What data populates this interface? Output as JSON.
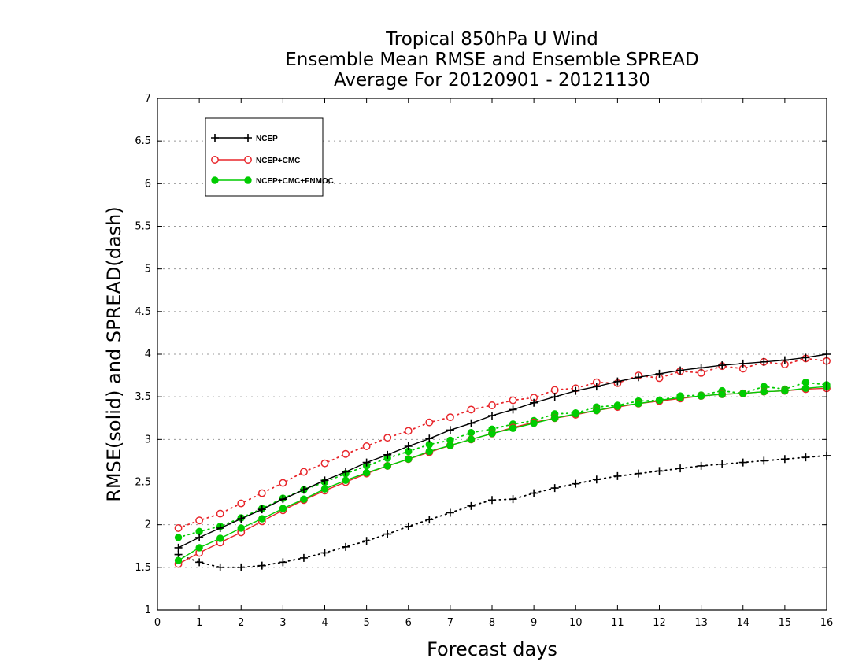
{
  "chart_data": {
    "type": "line",
    "title_lines": [
      "Tropical 850hPa U Wind",
      "Ensemble Mean RMSE and Ensemble SPREAD",
      "Average For 20120901 - 20121130"
    ],
    "xlabel": "Forecast days",
    "ylabel": "RMSE(solid) and SPREAD(dash)",
    "xlim": [
      0,
      16
    ],
    "ylim": [
      1,
      7
    ],
    "x_ticks": [
      0,
      1,
      2,
      3,
      4,
      5,
      6,
      7,
      8,
      9,
      10,
      11,
      12,
      13,
      14,
      15,
      16
    ],
    "y_ticks": [
      1,
      1.5,
      2,
      2.5,
      3,
      3.5,
      4,
      4.5,
      5,
      5.5,
      6,
      6.5,
      7
    ],
    "y_tick_labels": [
      "1",
      "1.5",
      "2",
      "2.5",
      "3",
      "3.5",
      "4",
      "4.5",
      "5",
      "5.5",
      "6",
      "6.5",
      "7"
    ],
    "grid": "horizontal dotted",
    "legend_position": "top-left",
    "x": [
      0.5,
      1,
      1.5,
      2,
      2.5,
      3,
      3.5,
      4,
      4.5,
      5,
      5.5,
      6,
      6.5,
      7,
      7.5,
      8,
      8.5,
      9,
      9.5,
      10,
      10.5,
      11,
      11.5,
      12,
      12.5,
      13,
      13.5,
      14,
      14.5,
      15,
      15.5,
      16
    ],
    "series": [
      {
        "name": "NCEP",
        "style": "solid",
        "color": "#000000",
        "marker": "plus",
        "values": [
          1.73,
          1.85,
          1.96,
          2.07,
          2.18,
          2.3,
          2.41,
          2.52,
          2.62,
          2.73,
          2.82,
          2.92,
          3.01,
          3.11,
          3.19,
          3.28,
          3.35,
          3.43,
          3.5,
          3.57,
          3.62,
          3.68,
          3.73,
          3.77,
          3.81,
          3.84,
          3.87,
          3.89,
          3.91,
          3.93,
          3.96,
          4.0
        ]
      },
      {
        "name": "NCEP+CMC",
        "style": "solid",
        "color": "#e8262b",
        "marker": "open-circle",
        "values": [
          1.54,
          1.67,
          1.79,
          1.91,
          2.04,
          2.17,
          2.29,
          2.4,
          2.5,
          2.6,
          2.69,
          2.77,
          2.85,
          2.93,
          3.0,
          3.07,
          3.14,
          3.2,
          3.25,
          3.29,
          3.34,
          3.38,
          3.42,
          3.45,
          3.48,
          3.51,
          3.53,
          3.54,
          3.56,
          3.57,
          3.59,
          3.6
        ]
      },
      {
        "name": "NCEP+CMC+FNMOC",
        "style": "solid",
        "color": "#00cc00",
        "marker": "filled-circle",
        "values": [
          1.58,
          1.73,
          1.84,
          1.96,
          2.07,
          2.19,
          2.3,
          2.42,
          2.52,
          2.61,
          2.69,
          2.77,
          2.86,
          2.93,
          3.0,
          3.07,
          3.13,
          3.19,
          3.25,
          3.3,
          3.34,
          3.39,
          3.42,
          3.46,
          3.49,
          3.51,
          3.53,
          3.54,
          3.56,
          3.57,
          3.6,
          3.62
        ]
      },
      {
        "name": "NCEP",
        "style": "dotted",
        "color": "#000000",
        "marker": "plus",
        "values": [
          1.65,
          1.56,
          1.5,
          1.5,
          1.52,
          1.56,
          1.61,
          1.67,
          1.74,
          1.81,
          1.89,
          1.98,
          2.06,
          2.14,
          2.22,
          2.29,
          2.3,
          2.37,
          2.43,
          2.48,
          2.53,
          2.57,
          2.6,
          2.63,
          2.66,
          2.69,
          2.71,
          2.73,
          2.75,
          2.77,
          2.79,
          2.81
        ]
      },
      {
        "name": "NCEP+CMC",
        "style": "dotted",
        "color": "#e8262b",
        "marker": "open-circle",
        "values": [
          1.96,
          2.05,
          2.13,
          2.25,
          2.37,
          2.49,
          2.62,
          2.72,
          2.83,
          2.92,
          3.02,
          3.1,
          3.2,
          3.26,
          3.35,
          3.4,
          3.46,
          3.49,
          3.58,
          3.6,
          3.67,
          3.66,
          3.75,
          3.72,
          3.8,
          3.78,
          3.86,
          3.83,
          3.91,
          3.88,
          3.95,
          3.92
        ]
      },
      {
        "name": "NCEP+CMC+FNMOC",
        "style": "dotted",
        "color": "#00cc00",
        "marker": "filled-circle",
        "values": [
          1.85,
          1.92,
          1.98,
          2.08,
          2.19,
          2.31,
          2.41,
          2.5,
          2.6,
          2.69,
          2.78,
          2.86,
          2.94,
          2.99,
          3.08,
          3.12,
          3.18,
          3.22,
          3.3,
          3.31,
          3.38,
          3.4,
          3.45,
          3.46,
          3.51,
          3.52,
          3.57,
          3.54,
          3.62,
          3.59,
          3.67,
          3.64
        ]
      }
    ]
  }
}
